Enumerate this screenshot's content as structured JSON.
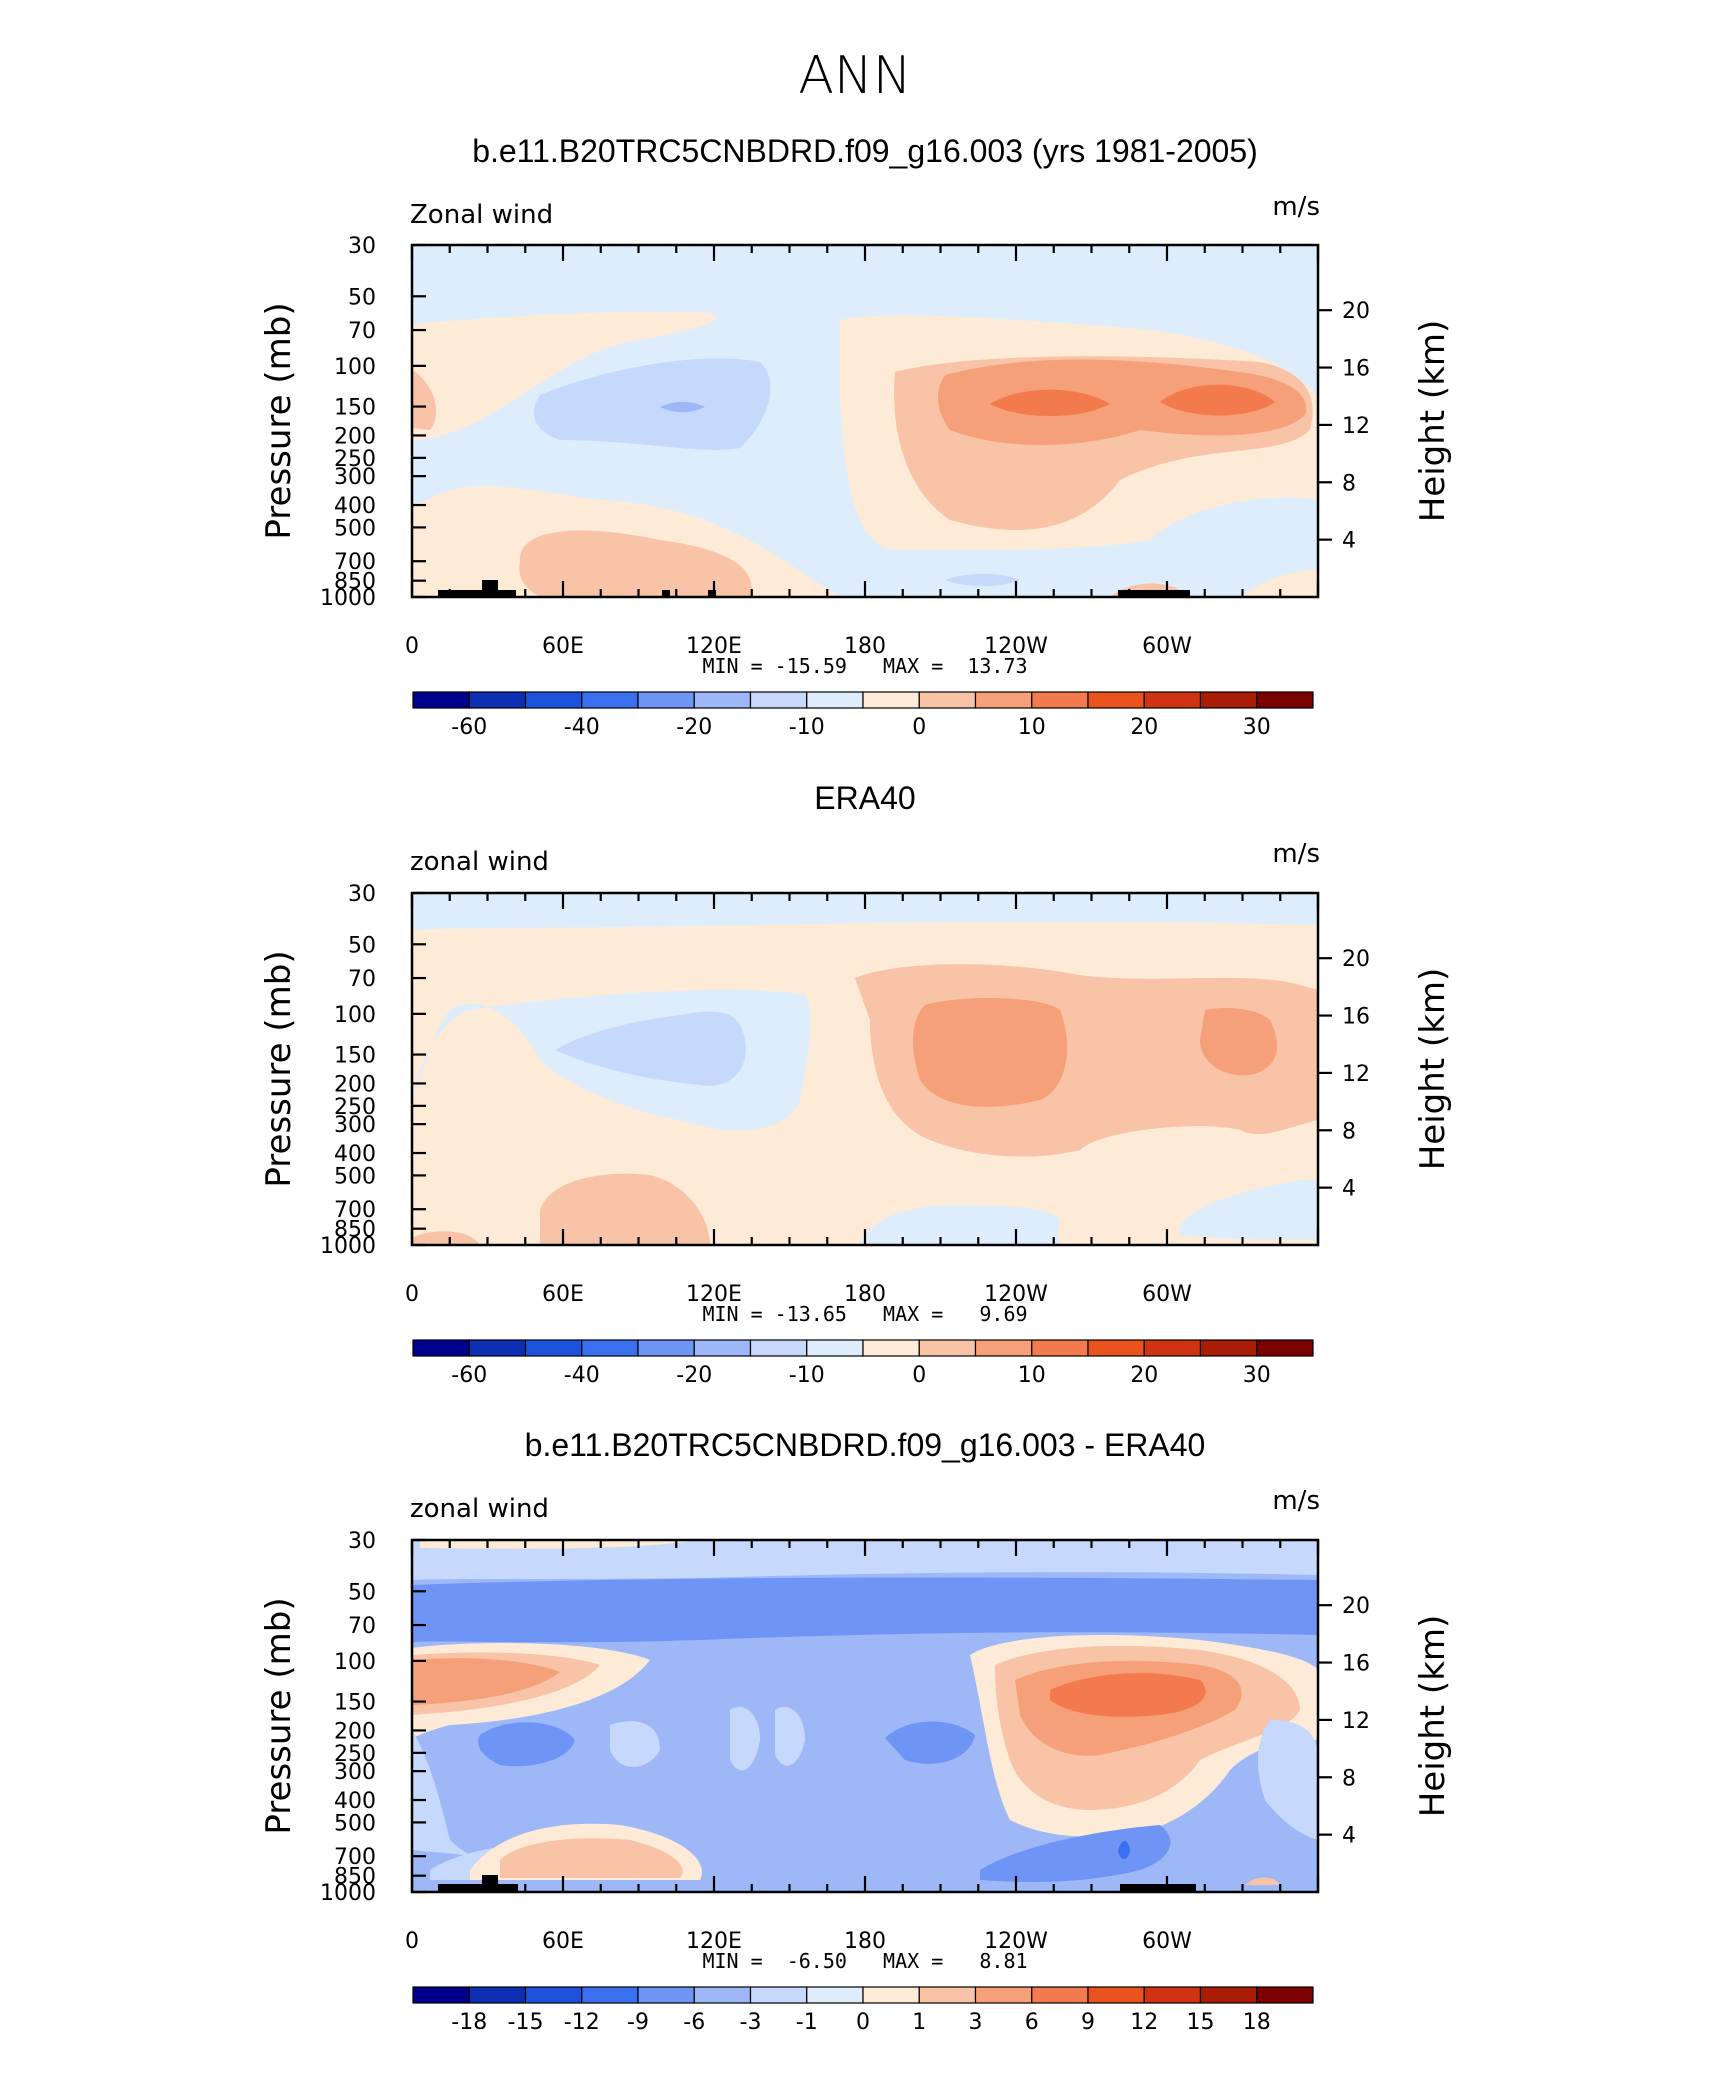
{
  "main_title": "ANN",
  "chart_data": [
    {
      "type": "contour",
      "title": "b.e11.B20TRC5CNBDRD.f09_g16.003 (yrs 1981-2005)",
      "field_label": "Zonal wind",
      "units": "m/s",
      "ylabel": "Pressure (mb)",
      "ylabel_right": "Height (km)",
      "x_ticks": [
        "0",
        "60E",
        "120E",
        "180",
        "120W",
        "60W"
      ],
      "y_ticks": [
        "30",
        "50",
        "70",
        "100",
        "150",
        "200",
        "250",
        "300",
        "400",
        "500",
        "700",
        "850",
        "1000"
      ],
      "y_right_ticks": [
        "20",
        "16",
        "12",
        "8",
        "4"
      ],
      "min": "-15.59",
      "max": "13.73",
      "stat_text": "MIN = -15.59   MAX =  13.73",
      "colorbar_levels": [
        "-60",
        "-40",
        "-20",
        "-10",
        "0",
        "10",
        "20",
        "30"
      ],
      "colorbar_colors": [
        "#00008b",
        "#0d2fb3",
        "#1c52dc",
        "#3a6fef",
        "#6e95f5",
        "#9eb8f7",
        "#c6d8fb",
        "#deedfb",
        "#fdebd8",
        "#f8c3a6",
        "#f5a078",
        "#f27a4c",
        "#e9531e",
        "#cf3312",
        "#a91d06",
        "#7c0202"
      ],
      "regions": "annual-mean zonal wind cross-section, peaks ~14 m/s near 150 mb east Pacific"
    },
    {
      "type": "contour",
      "title": "ERA40",
      "field_label": "zonal wind",
      "units": "m/s",
      "ylabel": "Pressure (mb)",
      "ylabel_right": "Height (km)",
      "x_ticks": [
        "0",
        "60E",
        "120E",
        "180",
        "120W",
        "60W"
      ],
      "y_ticks": [
        "30",
        "50",
        "70",
        "100",
        "150",
        "200",
        "250",
        "300",
        "400",
        "500",
        "700",
        "850",
        "1000"
      ],
      "y_right_ticks": [
        "20",
        "16",
        "12",
        "8",
        "4"
      ],
      "min": "-13.65",
      "max": "9.69",
      "stat_text": "MIN = -13.65   MAX =   9.69",
      "colorbar_levels": [
        "-60",
        "-40",
        "-20",
        "-10",
        "0",
        "10",
        "20",
        "30"
      ],
      "colorbar_colors": [
        "#00008b",
        "#0d2fb3",
        "#1c52dc",
        "#3a6fef",
        "#6e95f5",
        "#9eb8f7",
        "#c6d8fb",
        "#deedfb",
        "#fdebd8",
        "#f8c3a6",
        "#f5a078",
        "#f27a4c",
        "#e9531e",
        "#cf3312",
        "#a91d06",
        "#7c0202"
      ]
    },
    {
      "type": "contour",
      "title": "b.e11.B20TRC5CNBDRD.f09_g16.003 - ERA40",
      "field_label": "zonal wind",
      "units": "m/s",
      "ylabel": "Pressure (mb)",
      "ylabel_right": "Height (km)",
      "x_ticks": [
        "0",
        "60E",
        "120E",
        "180",
        "120W",
        "60W"
      ],
      "y_ticks": [
        "30",
        "50",
        "70",
        "100",
        "150",
        "200",
        "250",
        "300",
        "400",
        "500",
        "700",
        "850",
        "1000"
      ],
      "y_right_ticks": [
        "20",
        "16",
        "12",
        "8",
        "4"
      ],
      "min": "-6.50",
      "max": "8.81",
      "stat_text": "MIN =  -6.50   MAX =   8.81",
      "colorbar_levels": [
        "-18",
        "-15",
        "-12",
        "-9",
        "-6",
        "-3",
        "-1",
        "0",
        "1",
        "3",
        "6",
        "9",
        "12",
        "15",
        "18"
      ],
      "colorbar_colors": [
        "#00008b",
        "#0d2fb3",
        "#1c52dc",
        "#3a6fef",
        "#6e95f5",
        "#9eb8f7",
        "#c6d8fb",
        "#deedfb",
        "#fdebd8",
        "#f8c3a6",
        "#f5a078",
        "#f27a4c",
        "#e9531e",
        "#cf3312",
        "#a91d06",
        "#7c0202"
      ]
    }
  ]
}
